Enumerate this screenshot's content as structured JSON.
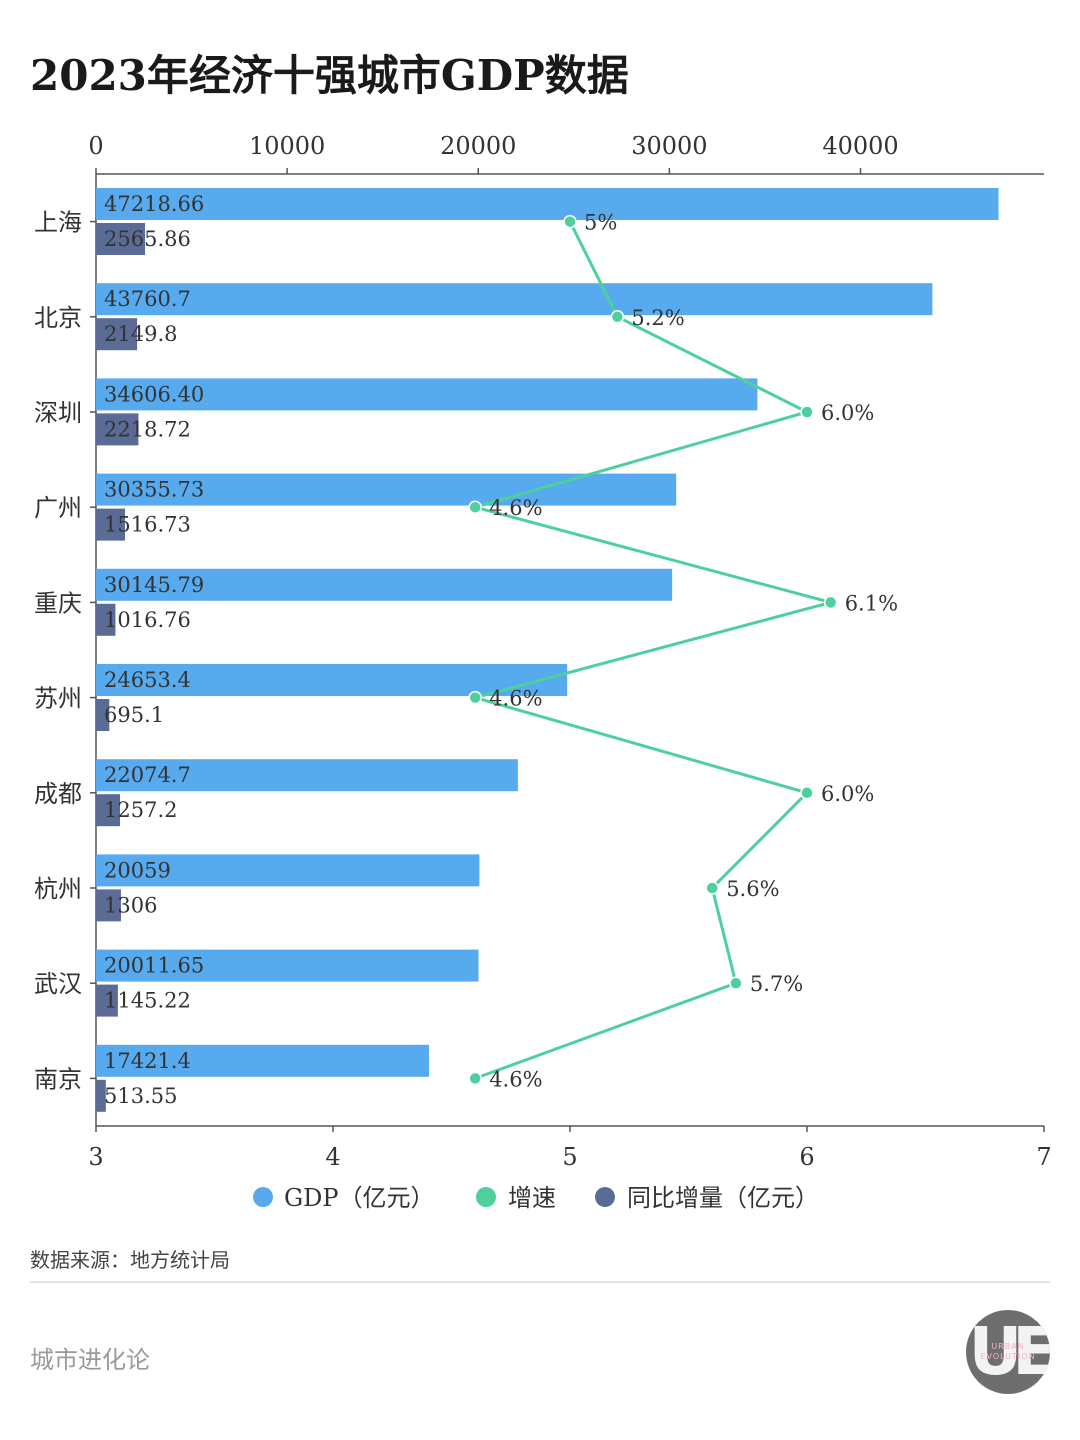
{
  "title": "2023年经济十强城市GDP数据",
  "source": "数据来源：地方统计局",
  "brand": "城市进化论",
  "logo": {
    "letters": "UE",
    "line1": "URBAN",
    "line2": "EVOLUTION"
  },
  "colors": {
    "gdp": "#57aaee",
    "increase": "#5a6b96",
    "growth": "#4ecf9e"
  },
  "chart_data": {
    "type": "bar",
    "categories": [
      "上海",
      "北京",
      "深圳",
      "广州",
      "重庆",
      "苏州",
      "成都",
      "杭州",
      "武汉",
      "南京"
    ],
    "series": [
      {
        "name": "GDP（亿元）",
        "type": "bar",
        "axis": "top",
        "values": [
          47218.66,
          43760.7,
          34606.4,
          30355.73,
          30145.79,
          24653.4,
          22074.7,
          20059,
          20011.65,
          17421.4
        ],
        "labels": [
          "47218.66",
          "43760.7",
          "34606.40",
          "30355.73",
          "30145.79",
          "24653.4",
          "22074.7",
          "20059",
          "20011.65",
          "17421.4"
        ]
      },
      {
        "name": "同比增量（亿元）",
        "type": "bar",
        "axis": "top",
        "values": [
          2565.86,
          2149.8,
          2218.72,
          1516.73,
          1016.76,
          695.1,
          1257.2,
          1306,
          1145.22,
          513.55
        ],
        "labels": [
          "2565.86",
          "2149.8",
          "2218.72",
          "1516.73",
          "1016.76",
          "695.1",
          "1257.2",
          "1306",
          "1145.22",
          "513.55"
        ]
      },
      {
        "name": "增速",
        "type": "line",
        "axis": "bottom",
        "values": [
          5,
          5.2,
          6.0,
          4.6,
          6.1,
          4.6,
          6.0,
          5.6,
          5.7,
          4.6
        ],
        "labels": [
          "5%",
          "5.2%",
          "6.0%",
          "4.6%",
          "6.1%",
          "4.6%",
          "6.0%",
          "5.6%",
          "5.7%",
          "4.6%"
        ]
      }
    ],
    "top_axis": {
      "min": 0,
      "max": 49600,
      "ticks": [
        "0",
        "10000",
        "20000",
        "30000",
        "40000"
      ],
      "tick_values": [
        0,
        10000,
        20000,
        30000,
        40000
      ]
    },
    "bottom_axis": {
      "min": 3,
      "max": 7,
      "ticks": [
        "3",
        "4",
        "5",
        "6",
        "7"
      ],
      "tick_values": [
        3,
        4,
        5,
        6,
        7
      ]
    },
    "legend_position": "bottom-center",
    "legend": [
      "GDP（亿元）",
      "增速",
      "同比增量（亿元）"
    ]
  }
}
